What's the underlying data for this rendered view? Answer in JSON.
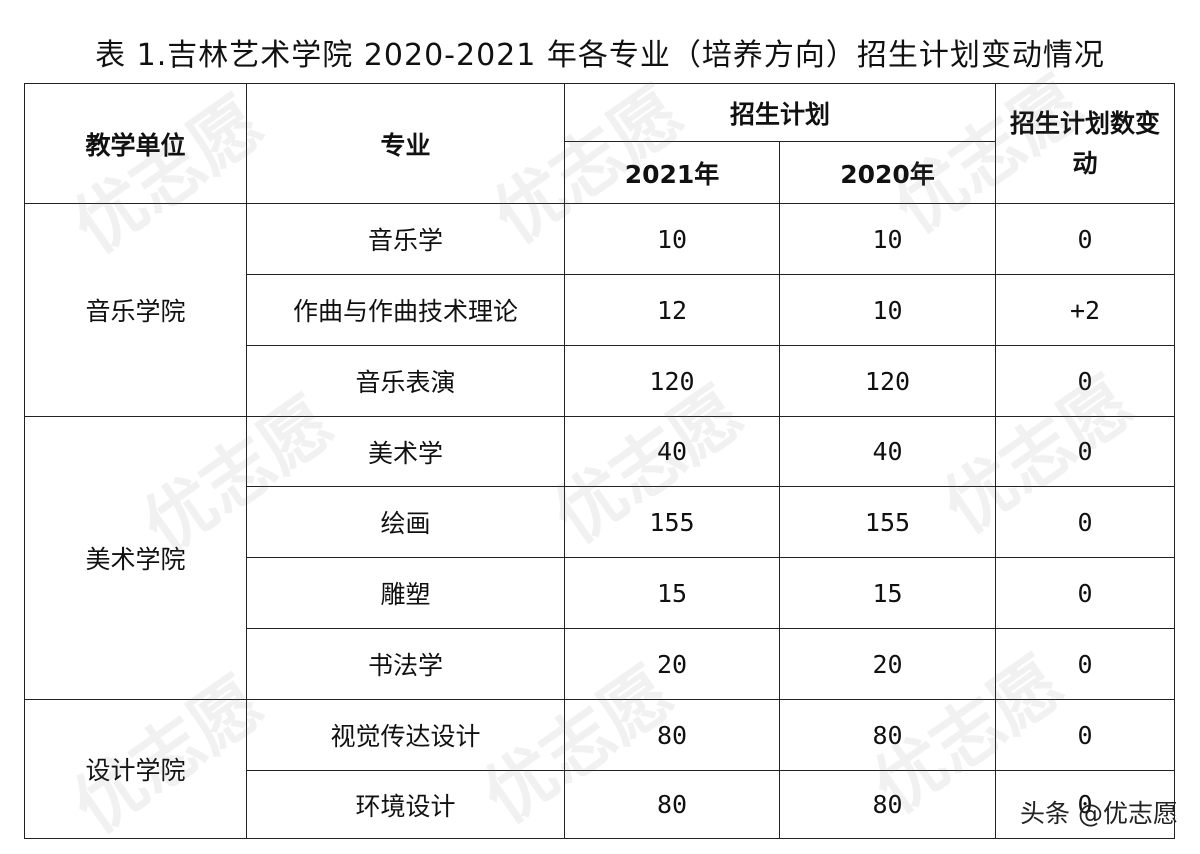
{
  "title": "表 1.吉林艺术学院 2020-2021 年各专业（培养方向）招生计划变动情况",
  "headers": {
    "unit": "教学单位",
    "major": "专业",
    "plan": "招生计划",
    "year2021": "2021年",
    "year2020": "2020年",
    "change": "招生计划数变动"
  },
  "groups": [
    {
      "unit": "音乐学院",
      "rows": [
        {
          "major": "音乐学",
          "y2021": "10",
          "y2020": "10",
          "change": "0"
        },
        {
          "major": "作曲与作曲技术理论",
          "y2021": "12",
          "y2020": "10",
          "change": "+2"
        },
        {
          "major": "音乐表演",
          "y2021": "120",
          "y2020": "120",
          "change": "0"
        }
      ]
    },
    {
      "unit": "美术学院",
      "rows": [
        {
          "major": "美术学",
          "y2021": "40",
          "y2020": "40",
          "change": "0"
        },
        {
          "major": "绘画",
          "y2021": "155",
          "y2020": "155",
          "change": "0"
        },
        {
          "major": "雕塑",
          "y2021": "15",
          "y2020": "15",
          "change": "0"
        },
        {
          "major": "书法学",
          "y2021": "20",
          "y2020": "20",
          "change": "0"
        }
      ]
    },
    {
      "unit": "设计学院",
      "rows": [
        {
          "major": "视觉传达设计",
          "y2021": "80",
          "y2020": "80",
          "change": "0"
        },
        {
          "major": "环境设计",
          "y2021": "80",
          "y2020": "80",
          "change": "0"
        }
      ]
    }
  ],
  "watermark_text": "优志愿",
  "credit": "头条 @优志愿"
}
